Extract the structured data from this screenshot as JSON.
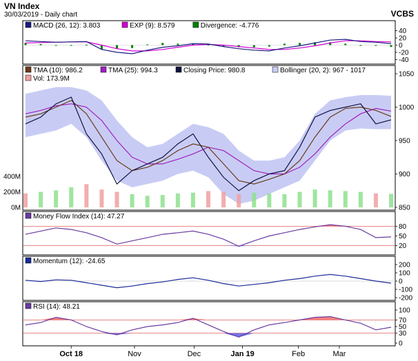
{
  "title": "VN Index",
  "subtitle": "30/03/2019 - Daily chart",
  "brand": "VCBS",
  "x_tick_labels": [
    "Oct 18",
    "Nov",
    "Dec",
    "Jan 19",
    "Feb",
    "Mar"
  ],
  "colors": {
    "macd": "#1a1a80",
    "macd_signal": "#d000d0",
    "divergence": "#008000",
    "tma10": "#6b3a1a",
    "tma25": "#a020c0",
    "close": "#101040",
    "bollinger_fill": "#c8ccf4",
    "volume": "#b0b0b0",
    "volume_up": "#8ee08e",
    "volume_down": "#f0a0a0",
    "mfi": "#6a3aa0",
    "momentum": "#1a2a9a",
    "rsi": "#6a3aa0",
    "overbought_fill": "#f06060",
    "oversold_fill": "#5050e0",
    "threshold_line": "#e06060"
  },
  "chart_data": [
    {
      "type": "line",
      "panel": "macd",
      "legend": [
        "MACD (26, 12): 3.803",
        "EXP (9): 8.579",
        "Divergence: -4.776"
      ],
      "ylim": [
        -45,
        45
      ],
      "y_ticks": [
        40,
        20,
        0,
        -20,
        -40
      ],
      "x": [
        0,
        10,
        20,
        30,
        40,
        50,
        60,
        70,
        80,
        90,
        100,
        110,
        120,
        130,
        140,
        150,
        160,
        170,
        180,
        190,
        200,
        210,
        220,
        230,
        240
      ],
      "series": [
        {
          "name": "MACD (26, 12)",
          "values": [
            12,
            10,
            8,
            9,
            10,
            -12,
            -20,
            -24,
            -14,
            -6,
            -2,
            4,
            3,
            -4,
            -10,
            -14,
            -16,
            -8,
            -2,
            6,
            14,
            16,
            10,
            8,
            4
          ]
        },
        {
          "name": "EXP (9)",
          "values": [
            6,
            7,
            8,
            9,
            9,
            0,
            -10,
            -16,
            -16,
            -12,
            -6,
            0,
            2,
            0,
            -4,
            -8,
            -12,
            -12,
            -8,
            -2,
            6,
            12,
            12,
            10,
            9
          ]
        },
        {
          "name": "Divergence",
          "values": [
            6,
            3,
            0,
            0,
            1,
            -12,
            -10,
            -8,
            2,
            6,
            4,
            4,
            1,
            -4,
            -6,
            -6,
            -4,
            4,
            6,
            8,
            8,
            4,
            -2,
            -2,
            -5
          ]
        }
      ]
    },
    {
      "type": "line",
      "panel": "price",
      "legend": [
        "TMA (10): 986.2",
        "TMA (25): 994.3",
        "Closing Price: 980.8",
        "Bollinger (20, 2): 967 - 1017",
        "Vol: 173.9M"
      ],
      "ylim": [
        850,
        1050
      ],
      "y_ticks": [
        1050,
        1000,
        950,
        900,
        850
      ],
      "volume_ticks": [
        "400M",
        "200M",
        "0M"
      ],
      "x": [
        0,
        10,
        20,
        30,
        40,
        50,
        60,
        70,
        80,
        90,
        100,
        110,
        120,
        130,
        140,
        150,
        160,
        170,
        180,
        190,
        200,
        210,
        220,
        230,
        240
      ],
      "series": [
        {
          "name": "Closing Price",
          "values": [
            975,
            985,
            1005,
            1015,
            960,
            930,
            885,
            905,
            915,
            925,
            945,
            960,
            925,
            895,
            875,
            890,
            900,
            905,
            940,
            985,
            995,
            1000,
            1005,
            975,
            981
          ]
        },
        {
          "name": "TMA (10)",
          "values": [
            985,
            990,
            1000,
            1010,
            990,
            955,
            920,
            905,
            910,
            920,
            935,
            945,
            940,
            915,
            890,
            885,
            892,
            900,
            920,
            955,
            985,
            998,
            1000,
            995,
            986
          ]
        },
        {
          "name": "TMA (25)",
          "values": [
            990,
            995,
            1002,
            1005,
            1000,
            980,
            950,
            925,
            915,
            915,
            922,
            930,
            940,
            935,
            920,
            905,
            900,
            900,
            910,
            930,
            955,
            975,
            990,
            998,
            994
          ]
        },
        {
          "name": "Bollinger upper",
          "values": [
            1020,
            1025,
            1030,
            1030,
            1025,
            1010,
            980,
            955,
            940,
            945,
            960,
            975,
            970,
            960,
            935,
            920,
            920,
            925,
            950,
            990,
            1010,
            1015,
            1018,
            1018,
            1017
          ]
        },
        {
          "name": "Bollinger lower",
          "values": [
            955,
            960,
            965,
            975,
            955,
            920,
            890,
            880,
            885,
            890,
            900,
            905,
            895,
            870,
            855,
            860,
            870,
            880,
            890,
            920,
            950,
            965,
            968,
            967,
            967
          ]
        },
        {
          "name": "Vol",
          "values": [
            180,
            200,
            220,
            260,
            300,
            230,
            200,
            170,
            150,
            160,
            180,
            190,
            210,
            200,
            170,
            190,
            180,
            170,
            200,
            230,
            220,
            210,
            200,
            180,
            174
          ]
        }
      ]
    },
    {
      "type": "line",
      "panel": "mfi",
      "legend": [
        "Money Flow Index (14): 47.27"
      ],
      "ylim": [
        0,
        100
      ],
      "y_ticks": [
        80,
        50,
        20
      ],
      "x": [
        0,
        10,
        20,
        30,
        40,
        50,
        60,
        70,
        80,
        90,
        100,
        110,
        120,
        130,
        140,
        150,
        160,
        170,
        180,
        190,
        200,
        210,
        220,
        230,
        240
      ],
      "series": [
        {
          "name": "Money Flow Index (14)",
          "values": [
            55,
            65,
            75,
            70,
            60,
            45,
            25,
            35,
            45,
            55,
            60,
            65,
            55,
            40,
            18,
            35,
            50,
            60,
            70,
            78,
            85,
            80,
            70,
            45,
            47
          ]
        }
      ]
    },
    {
      "type": "line",
      "panel": "momentum",
      "legend": [
        "Momentum (12): -24.65"
      ],
      "ylim": [
        -200,
        200
      ],
      "y_ticks": [
        200,
        100,
        0,
        -100,
        -200
      ],
      "x": [
        0,
        10,
        20,
        30,
        40,
        50,
        60,
        70,
        80,
        90,
        100,
        110,
        120,
        130,
        140,
        150,
        160,
        170,
        180,
        190,
        200,
        210,
        220,
        230,
        240
      ],
      "series": [
        {
          "name": "Momentum (12)",
          "values": [
            10,
            -5,
            15,
            10,
            -20,
            -50,
            -80,
            -60,
            -30,
            -10,
            20,
            40,
            10,
            -30,
            -60,
            -40,
            -20,
            10,
            30,
            60,
            80,
            60,
            30,
            0,
            -25
          ]
        }
      ]
    },
    {
      "type": "line",
      "panel": "rsi",
      "legend": [
        "RSI (14): 48.21"
      ],
      "ylim": [
        0,
        100
      ],
      "y_ticks": [
        100,
        70,
        50,
        30,
        0
      ],
      "x": [
        0,
        10,
        20,
        30,
        40,
        50,
        60,
        70,
        80,
        90,
        100,
        110,
        120,
        130,
        140,
        150,
        160,
        170,
        180,
        190,
        200,
        210,
        220,
        230,
        240
      ],
      "series": [
        {
          "name": "RSI (14)",
          "values": [
            55,
            62,
            78,
            70,
            50,
            35,
            25,
            40,
            50,
            55,
            62,
            75,
            55,
            35,
            18,
            40,
            55,
            62,
            70,
            78,
            80,
            70,
            60,
            40,
            48
          ]
        }
      ]
    }
  ]
}
